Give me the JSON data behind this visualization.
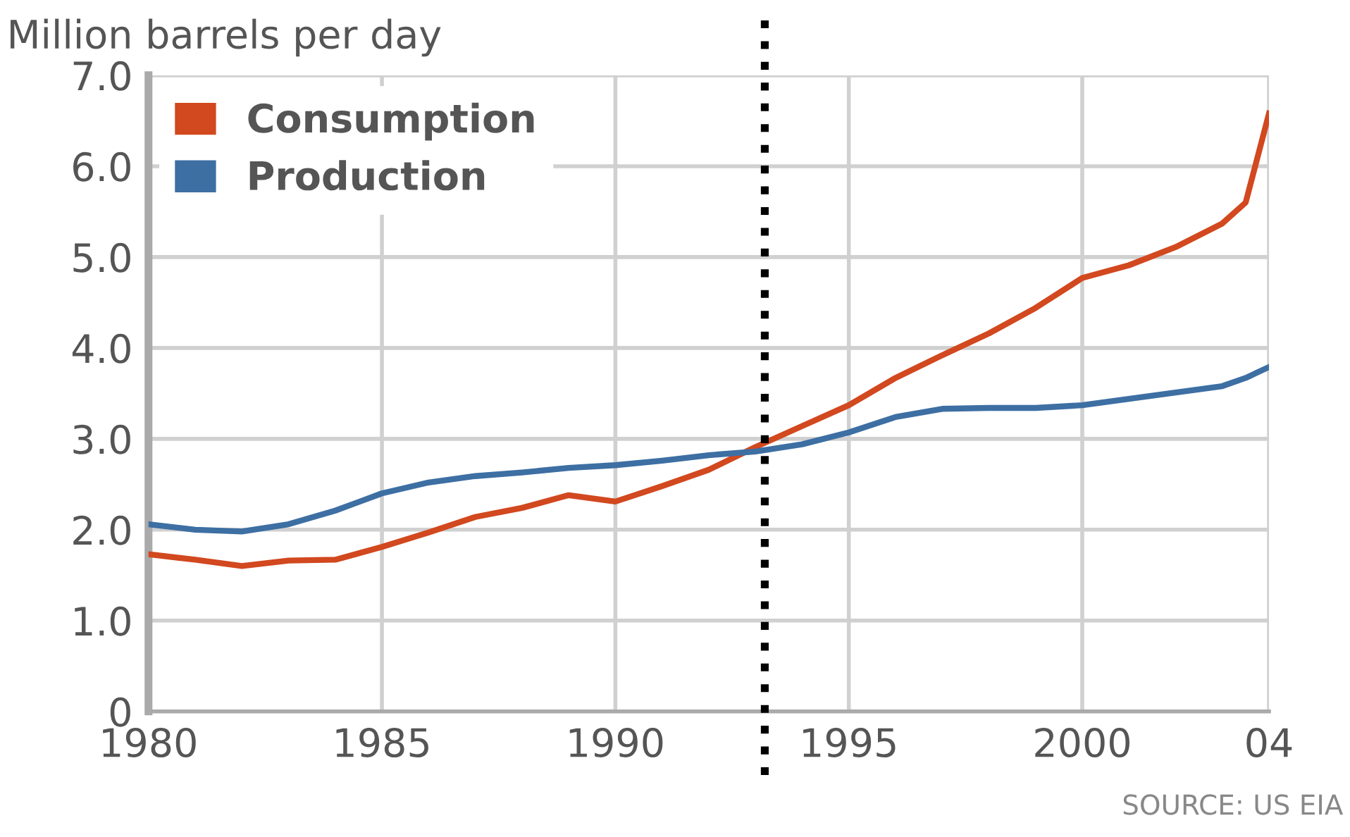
{
  "chart_data": {
    "type": "line",
    "ylabel": "Million barrels per day",
    "x": [
      1980,
      1981,
      1982,
      1983,
      1984,
      1985,
      1986,
      1987,
      1988,
      1989,
      1990,
      1991,
      1992,
      1993,
      1994,
      1995,
      1996,
      1997,
      1998,
      1999,
      2000,
      2001,
      2002,
      2003,
      2003.5,
      2004
    ],
    "series": [
      {
        "name": "Consumption",
        "color": "#d2481f",
        "values": [
          1.73,
          1.67,
          1.6,
          1.66,
          1.67,
          1.81,
          1.97,
          2.14,
          2.24,
          2.38,
          2.31,
          2.48,
          2.66,
          2.91,
          3.14,
          3.37,
          3.67,
          3.92,
          4.16,
          4.44,
          4.77,
          4.91,
          5.11,
          5.37,
          5.6,
          6.58
        ]
      },
      {
        "name": "Production",
        "color": "#3d6fa3",
        "values": [
          2.06,
          2.0,
          1.98,
          2.06,
          2.21,
          2.4,
          2.52,
          2.59,
          2.63,
          2.68,
          2.71,
          2.76,
          2.82,
          2.86,
          2.94,
          3.07,
          3.24,
          3.33,
          3.34,
          3.34,
          3.37,
          3.44,
          3.51,
          3.58,
          3.67,
          3.79
        ]
      }
    ],
    "xlim": [
      1980,
      2004
    ],
    "xticks": [
      1980,
      1985,
      1990,
      1995,
      2000,
      {
        "value": 2004,
        "label": "04"
      }
    ],
    "ylim": [
      0,
      7
    ],
    "yticks": [
      {
        "value": 0,
        "label": "0"
      },
      {
        "value": 1,
        "label": "1.0"
      },
      {
        "value": 2,
        "label": "2.0"
      },
      {
        "value": 3,
        "label": "3.0"
      },
      {
        "value": 4,
        "label": "4.0"
      },
      {
        "value": 5,
        "label": "5.0"
      },
      {
        "value": 6,
        "label": "6.0"
      },
      {
        "value": 7,
        "label": "7.0"
      }
    ],
    "grid": true,
    "legend": "top left",
    "ref_lines": [
      {
        "axis": "x",
        "value": 1993.2,
        "color": "#000000",
        "line_style": "dotted"
      }
    ],
    "annotations": [
      "SOURCE: US EIA"
    ]
  }
}
